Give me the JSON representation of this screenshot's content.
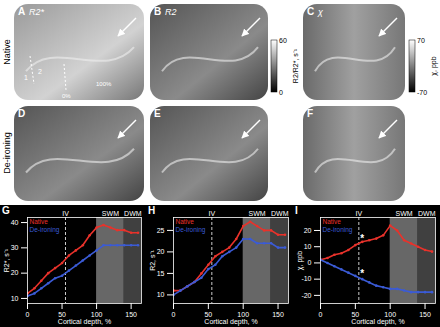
{
  "images": {
    "row_labels": [
      "Native",
      "De-ironing"
    ],
    "panels": [
      {
        "label": "A",
        "title": "R2*"
      },
      {
        "label": "B",
        "title": "R2"
      },
      {
        "label": "C",
        "title": "χ"
      },
      {
        "label": "D"
      },
      {
        "label": "E"
      },
      {
        "label": "F"
      }
    ],
    "panel_A_marks": [
      "1",
      "2",
      "0%",
      "100%"
    ],
    "colorbars": [
      {
        "label": "R2/R2*, s⁻¹",
        "lim": [
          0,
          60
        ],
        "ticks": [
          0,
          60
        ]
      },
      {
        "label": "χ, ppb",
        "lim": [
          -70,
          70
        ],
        "ticks": [
          -70,
          70
        ]
      }
    ]
  },
  "chart_data": [
    {
      "type": "line",
      "title": "G",
      "xlabel": "Cortical depth, %",
      "ylabel": "R2*, s⁻¹",
      "x": [
        0,
        10,
        20,
        30,
        40,
        50,
        60,
        70,
        80,
        90,
        100,
        110,
        120,
        130,
        140,
        150,
        160
      ],
      "series": [
        {
          "name": "Native",
          "color": "#e8322b",
          "values": [
            12,
            14,
            17,
            20,
            22,
            24,
            27,
            29,
            31,
            35,
            38,
            39,
            38,
            37,
            37,
            36,
            36
          ]
        },
        {
          "name": "De-ironing",
          "color": "#3b5bd6",
          "values": [
            11,
            12,
            14,
            16,
            18,
            19,
            21,
            23,
            25,
            27,
            29,
            31,
            31,
            31,
            31,
            31,
            31
          ]
        }
      ],
      "xlim": [
        0,
        165
      ],
      "xticks": [
        0,
        50,
        100,
        150
      ],
      "ylim": [
        8,
        42
      ],
      "yticks": [
        10,
        20,
        30,
        40
      ],
      "legend": "top-left",
      "regions": [
        {
          "label": "SWM",
          "x": [
            100,
            140
          ],
          "color": "#8a8a8a"
        },
        {
          "label": "DWM",
          "x": [
            140,
            165
          ],
          "color": "#555555"
        }
      ],
      "reference_lines": [
        {
          "label": "IV",
          "x": 55
        }
      ],
      "annotations": []
    },
    {
      "type": "line",
      "title": "H",
      "xlabel": "Cortical depth, %",
      "ylabel": "R2, s⁻¹",
      "x": [
        0,
        10,
        20,
        30,
        40,
        50,
        60,
        70,
        80,
        90,
        100,
        110,
        120,
        130,
        140,
        150,
        160
      ],
      "series": [
        {
          "name": "Native",
          "color": "#e8322b",
          "values": [
            11,
            11,
            12,
            13,
            15,
            17,
            19,
            20,
            21,
            23,
            26,
            27,
            26,
            25,
            25,
            24,
            24
          ]
        },
        {
          "name": "De-ironing",
          "color": "#3b5bd6",
          "values": [
            10,
            11,
            12,
            13,
            14,
            16,
            17,
            19,
            20,
            21,
            23,
            23,
            22,
            22,
            22,
            21,
            21
          ]
        }
      ],
      "xlim": [
        0,
        165
      ],
      "xticks": [
        0,
        50,
        100,
        150
      ],
      "ylim": [
        8,
        28
      ],
      "yticks": [
        10,
        15,
        20,
        25
      ],
      "legend": "top-left",
      "regions": [
        {
          "label": "SWM",
          "x": [
            100,
            140
          ],
          "color": "#8a8a8a"
        },
        {
          "label": "DWM",
          "x": [
            140,
            165
          ],
          "color": "#555555"
        }
      ],
      "reference_lines": [
        {
          "label": "IV",
          "x": 55
        }
      ],
      "annotations": []
    },
    {
      "type": "line",
      "title": "I",
      "xlabel": "Cortical depth, %",
      "ylabel": "χ, ppb",
      "x": [
        0,
        10,
        20,
        30,
        40,
        50,
        60,
        70,
        80,
        90,
        100,
        110,
        120,
        130,
        140,
        150,
        160
      ],
      "series": [
        {
          "name": "Native",
          "color": "#e8322b",
          "values": [
            2,
            3,
            5,
            6,
            8,
            11,
            13,
            14,
            15,
            17,
            23,
            20,
            14,
            12,
            10,
            8,
            7
          ]
        },
        {
          "name": "De-ironing",
          "color": "#3b5bd6",
          "values": [
            2,
            0,
            -2,
            -4,
            -6,
            -8,
            -10,
            -12,
            -14,
            -15,
            -16,
            -16,
            -17,
            -18,
            -18,
            -18,
            -18
          ]
        }
      ],
      "xlim": [
        0,
        165
      ],
      "xticks": [
        0,
        50,
        100,
        150
      ],
      "ylim": [
        -25,
        28
      ],
      "yticks": [
        -20,
        -10,
        0,
        10,
        20
      ],
      "legend": "top-left",
      "regions": [
        {
          "label": "SWM",
          "x": [
            100,
            140
          ],
          "color": "#8a8a8a"
        },
        {
          "label": "DWM",
          "x": [
            140,
            165
          ],
          "color": "#555555"
        }
      ],
      "reference_lines": [
        {
          "label": "IV",
          "x": 55
        }
      ],
      "annotations": [
        {
          "text": "*",
          "x": 60,
          "y": 15
        },
        {
          "text": "*",
          "x": 60,
          "y": -7
        }
      ]
    }
  ]
}
